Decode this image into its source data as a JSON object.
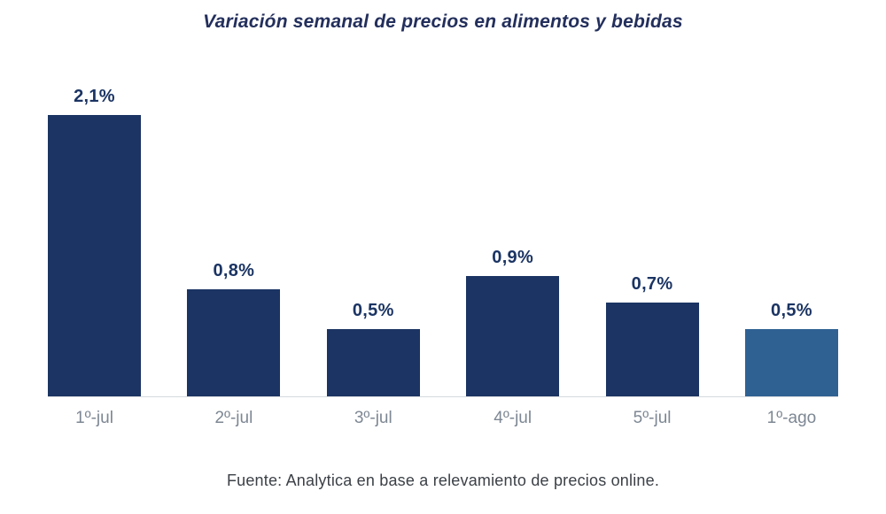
{
  "chart_data": {
    "type": "bar",
    "title": "Variación semanal de precios en alimentos y bebidas",
    "categories": [
      "1º-jul",
      "2º-jul",
      "3º-jul",
      "4º-jul",
      "5º-jul",
      "1º-ago"
    ],
    "values": [
      2.1,
      0.8,
      0.5,
      0.9,
      0.7,
      0.5
    ],
    "value_labels": [
      "2,1%",
      "0,8%",
      "0,5%",
      "0,9%",
      "0,7%",
      "0,5%"
    ],
    "ylim": [
      0,
      2.1
    ],
    "xlabel": "",
    "ylabel": "",
    "grid": false,
    "legend": false,
    "highlight_index": 5,
    "source": "Fuente: Analytica en base a relevamiento de precios online.",
    "colors": {
      "bar_default": "#1b3463",
      "bar_highlight": "#2f6193",
      "value_label": "#1b3463",
      "title": "#232f5c",
      "category_label": "#7d8793",
      "axis_line": "#d6dade",
      "source_text": "#3c4147"
    }
  }
}
